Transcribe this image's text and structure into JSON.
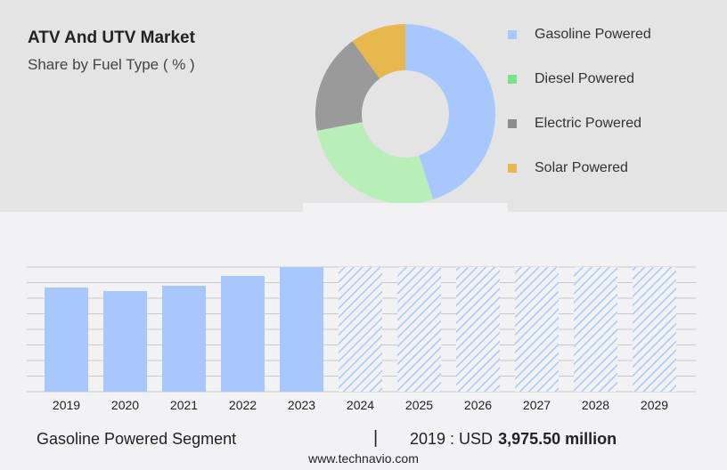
{
  "header": {
    "title": "ATV And UTV Market",
    "subtitle": "Share by Fuel Type ( % )"
  },
  "chart_data": [
    {
      "type": "pie",
      "variant": "donut",
      "categories": [
        "Gasoline Powered",
        "Diesel Powered",
        "Electric Powered",
        "Solar Powered"
      ],
      "values": [
        45,
        27,
        18,
        10
      ],
      "colors": [
        "#a8c8fd",
        "#b8efb8",
        "#9a9a9a",
        "#e6b84e"
      ],
      "legend_colors": [
        "#a8c8fd",
        "#7be08c",
        "#8c8c8c",
        "#e6b84e"
      ],
      "legend_position": "right"
    },
    {
      "type": "bar",
      "categories": [
        "2019",
        "2020",
        "2021",
        "2022",
        "2023",
        "2024",
        "2025",
        "2026",
        "2027",
        "2028",
        "2029"
      ],
      "values": [
        3975.5,
        3840,
        4043,
        4417,
        4757,
        null,
        null,
        null,
        null,
        null,
        null
      ],
      "forecast": [
        false,
        false,
        false,
        false,
        false,
        true,
        true,
        true,
        true,
        true,
        true
      ],
      "color": "#a8c8fd",
      "grid": true,
      "ylim": [
        0,
        4757
      ]
    }
  ],
  "footer": {
    "segment": "Gasoline Powered Segment",
    "separator": "|",
    "year_label": "2019 : USD",
    "value": "3,975.50 million",
    "site": "www.technavio.com"
  }
}
